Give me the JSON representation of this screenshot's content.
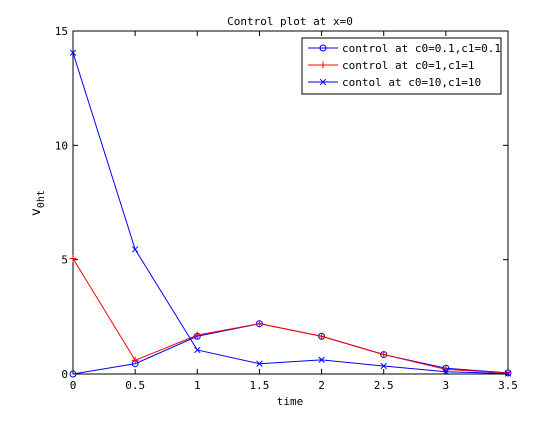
{
  "chart_data": {
    "type": "line",
    "title": "Control plot at x=0",
    "xlabel": "time",
    "ylabel": "v_{0ht}",
    "ylabel_main": "v",
    "ylabel_sub": "0ht",
    "xlim": [
      0,
      3.5
    ],
    "ylim": [
      0,
      15
    ],
    "xticks": [
      0,
      0.5,
      1,
      1.5,
      2,
      2.5,
      3,
      3.5
    ],
    "xtick_labels": [
      "0",
      "0.5",
      "1",
      "1.5",
      "2",
      "2.5",
      "3",
      "3.5"
    ],
    "yticks": [
      0,
      5,
      10,
      15
    ],
    "ytick_labels": [
      "0",
      "5",
      "10",
      "15"
    ],
    "grid": false,
    "legend_position": "top-right",
    "x": [
      0,
      0.5,
      1,
      1.5,
      2,
      2.5,
      3,
      3.5
    ],
    "series": [
      {
        "name": "control at c0=0.1,c1=0.1",
        "color": "#0000ff",
        "marker": "circle",
        "values": [
          0,
          0.45,
          1.65,
          2.2,
          1.65,
          0.85,
          0.25,
          0.05
        ]
      },
      {
        "name": "control at c0=1,c1=1",
        "color": "#ff0000",
        "marker": "plus",
        "values": [
          5.05,
          0.6,
          1.7,
          2.2,
          1.65,
          0.85,
          0.2,
          0.05
        ]
      },
      {
        "name": "contol at c0=10,c1=10",
        "color": "#0000ff",
        "marker": "x",
        "values": [
          14.05,
          5.45,
          1.05,
          0.45,
          0.62,
          0.35,
          0.1,
          0.02
        ]
      }
    ]
  }
}
